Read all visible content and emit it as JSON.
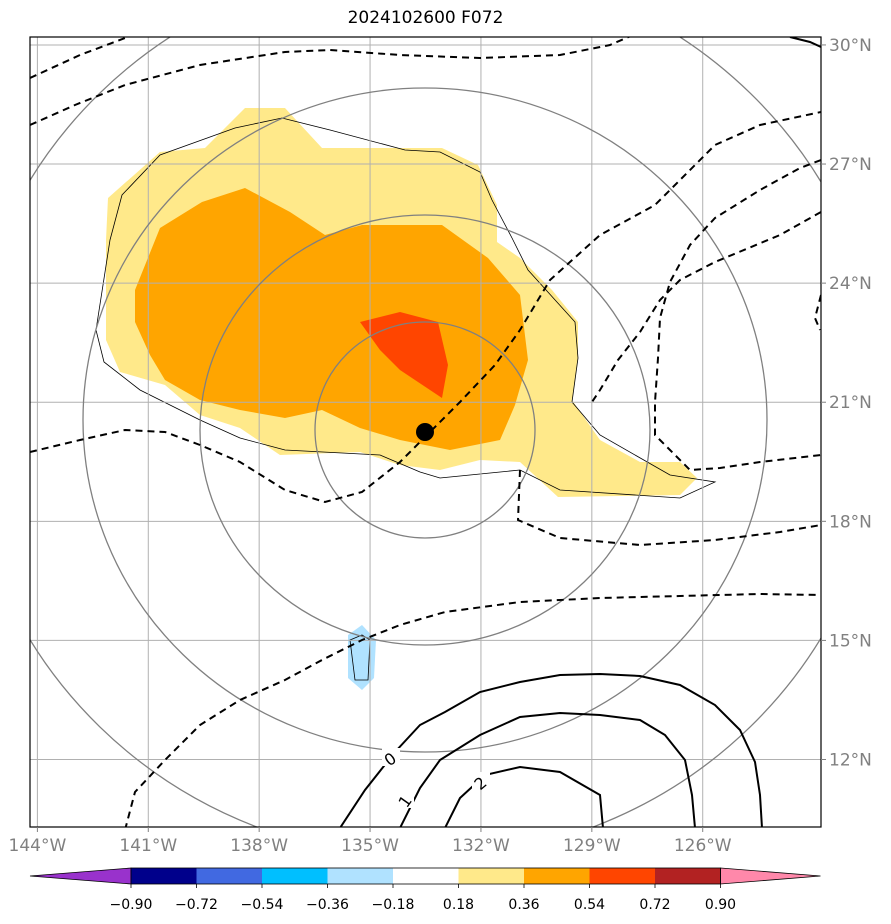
{
  "title": "2024102600 F072",
  "map": {
    "lon_range": [
      -144.2,
      -122.8
    ],
    "lat_range": [
      10.3,
      30.2
    ],
    "lon_ticks": [
      -144,
      -141,
      -138,
      -135,
      -132,
      -129,
      -126
    ],
    "lon_tick_labels": [
      "144°W",
      "141°W",
      "138°W",
      "135°W",
      "132°W",
      "129°W",
      "126°W"
    ],
    "lat_ticks": [
      12,
      15,
      18,
      21,
      24,
      27,
      30
    ],
    "lat_tick_labels": [
      "12°N",
      "15°N",
      "18°N",
      "21°N",
      "24°N",
      "27°N",
      "30°N"
    ],
    "grid": true,
    "storm_center": {
      "lon": -134.5,
      "lat": 20.2
    },
    "range_rings_center": {
      "lon": -134.5,
      "lat": 20.2
    },
    "solid_contour_labels": [
      "0",
      "1",
      "2"
    ]
  },
  "colorbar": {
    "levels": [
      "−0.90",
      "−0.72",
      "−0.54",
      "−0.36",
      "−0.18",
      "0.18",
      "0.36",
      "0.54",
      "0.72",
      "0.90"
    ],
    "colors": [
      "#9932cc",
      "#00008b",
      "#4169e1",
      "#00bfff",
      "#b0e2ff",
      "#ffffff",
      "#ffe98a",
      "#ffa500",
      "#ff4500",
      "#b22222",
      "#ff88aa"
    ],
    "extend": "both"
  },
  "colors": {
    "grid": "#b0b0b0",
    "rings": "#808080",
    "dashed": "#000000",
    "solid": "#000000",
    "fill_018_036": "#ffe98a",
    "fill_036_054": "#ffa500",
    "fill_054_072": "#ff4500",
    "fill_neg_018": "#b0e2ff"
  }
}
